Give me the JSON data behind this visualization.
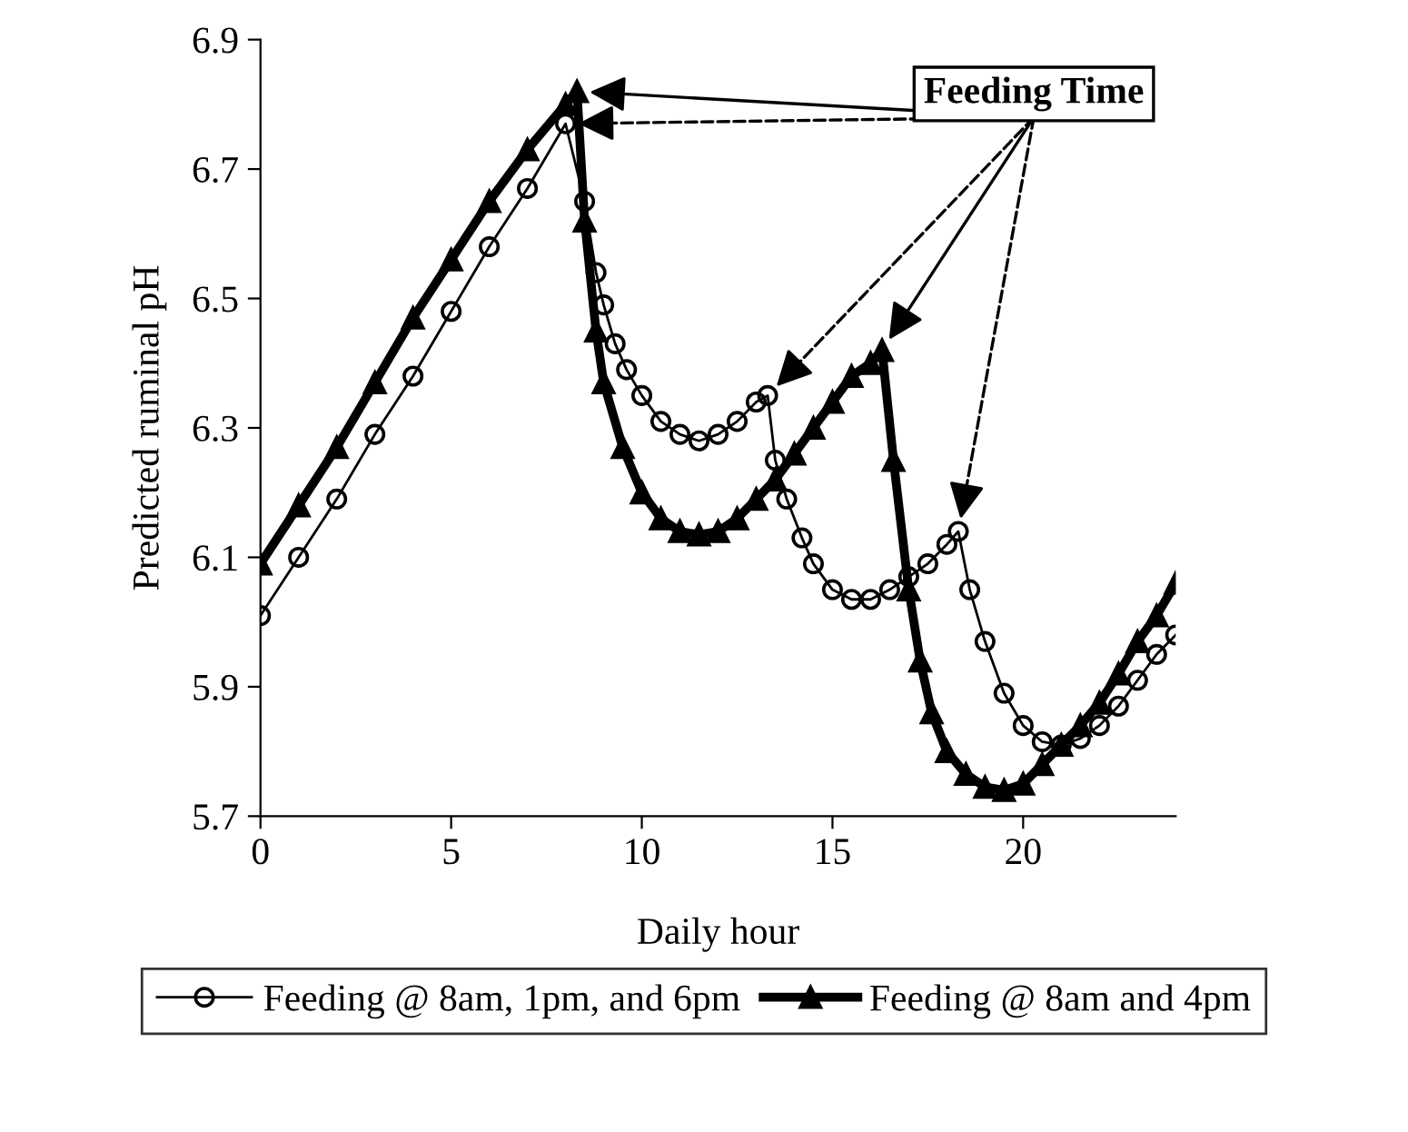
{
  "chart_data": {
    "type": "line",
    "xlabel": "Daily hour",
    "ylabel": "Predicted ruminal pH",
    "xlim": [
      0,
      24
    ],
    "ylim": [
      5.7,
      6.9
    ],
    "xticks": [
      0,
      5,
      10,
      15,
      20
    ],
    "yticks": [
      5.7,
      5.9,
      6.1,
      6.3,
      6.5,
      6.7,
      6.9
    ],
    "grid": false,
    "legend": "bottom",
    "annotations": [
      "Feeding Time"
    ],
    "series": [
      {
        "name": "Feeding @ 8am, 1pm, and 6pm",
        "color": "#000000",
        "marker": "circle",
        "line_style": "solid",
        "x": [
          0,
          1,
          2,
          3,
          4,
          5,
          6,
          7,
          8,
          8.5,
          8.8,
          9,
          9.3,
          9.6,
          10,
          10.5,
          11,
          11.5,
          12,
          12.5,
          13,
          13.3,
          13.5,
          13.8,
          14.2,
          14.5,
          15,
          15.5,
          16,
          16.5,
          17,
          17.5,
          18,
          18.3,
          18.6,
          19,
          19.5,
          20,
          20.5,
          21,
          21.5,
          22,
          22.5,
          23,
          23.5,
          24
        ],
        "values": [
          6.01,
          6.1,
          6.19,
          6.29,
          6.38,
          6.48,
          6.58,
          6.67,
          6.77,
          6.65,
          6.54,
          6.49,
          6.43,
          6.39,
          6.35,
          6.31,
          6.29,
          6.28,
          6.29,
          6.31,
          6.34,
          6.35,
          6.25,
          6.19,
          6.13,
          6.09,
          6.05,
          6.035,
          6.035,
          6.05,
          6.07,
          6.09,
          6.12,
          6.14,
          6.05,
          5.97,
          5.89,
          5.84,
          5.815,
          5.81,
          5.82,
          5.84,
          5.87,
          5.91,
          5.95,
          5.98
        ]
      },
      {
        "name": "Feeding @ 8am and 4pm",
        "color": "#000000",
        "marker": "triangle",
        "line_style": "solid",
        "x": [
          0,
          1,
          2,
          3,
          4,
          5,
          6,
          7,
          8,
          8.3,
          8.5,
          8.8,
          9,
          9.5,
          10,
          10.5,
          11,
          11.5,
          12,
          12.5,
          13,
          13.5,
          14,
          14.5,
          15,
          15.5,
          16,
          16.3,
          16.6,
          17,
          17.3,
          17.6,
          18,
          18.5,
          19,
          19.5,
          20,
          20.5,
          21,
          21.5,
          22,
          22.5,
          23,
          23.5,
          24
        ],
        "values": [
          6.09,
          6.18,
          6.27,
          6.37,
          6.47,
          6.56,
          6.65,
          6.73,
          6.8,
          6.82,
          6.62,
          6.45,
          6.37,
          6.27,
          6.2,
          6.16,
          6.14,
          6.135,
          6.14,
          6.16,
          6.19,
          6.22,
          6.26,
          6.3,
          6.34,
          6.38,
          6.4,
          6.42,
          6.25,
          6.05,
          5.94,
          5.86,
          5.8,
          5.765,
          5.745,
          5.74,
          5.75,
          5.78,
          5.81,
          5.84,
          5.875,
          5.92,
          5.97,
          6.01,
          6.06
        ]
      }
    ]
  }
}
